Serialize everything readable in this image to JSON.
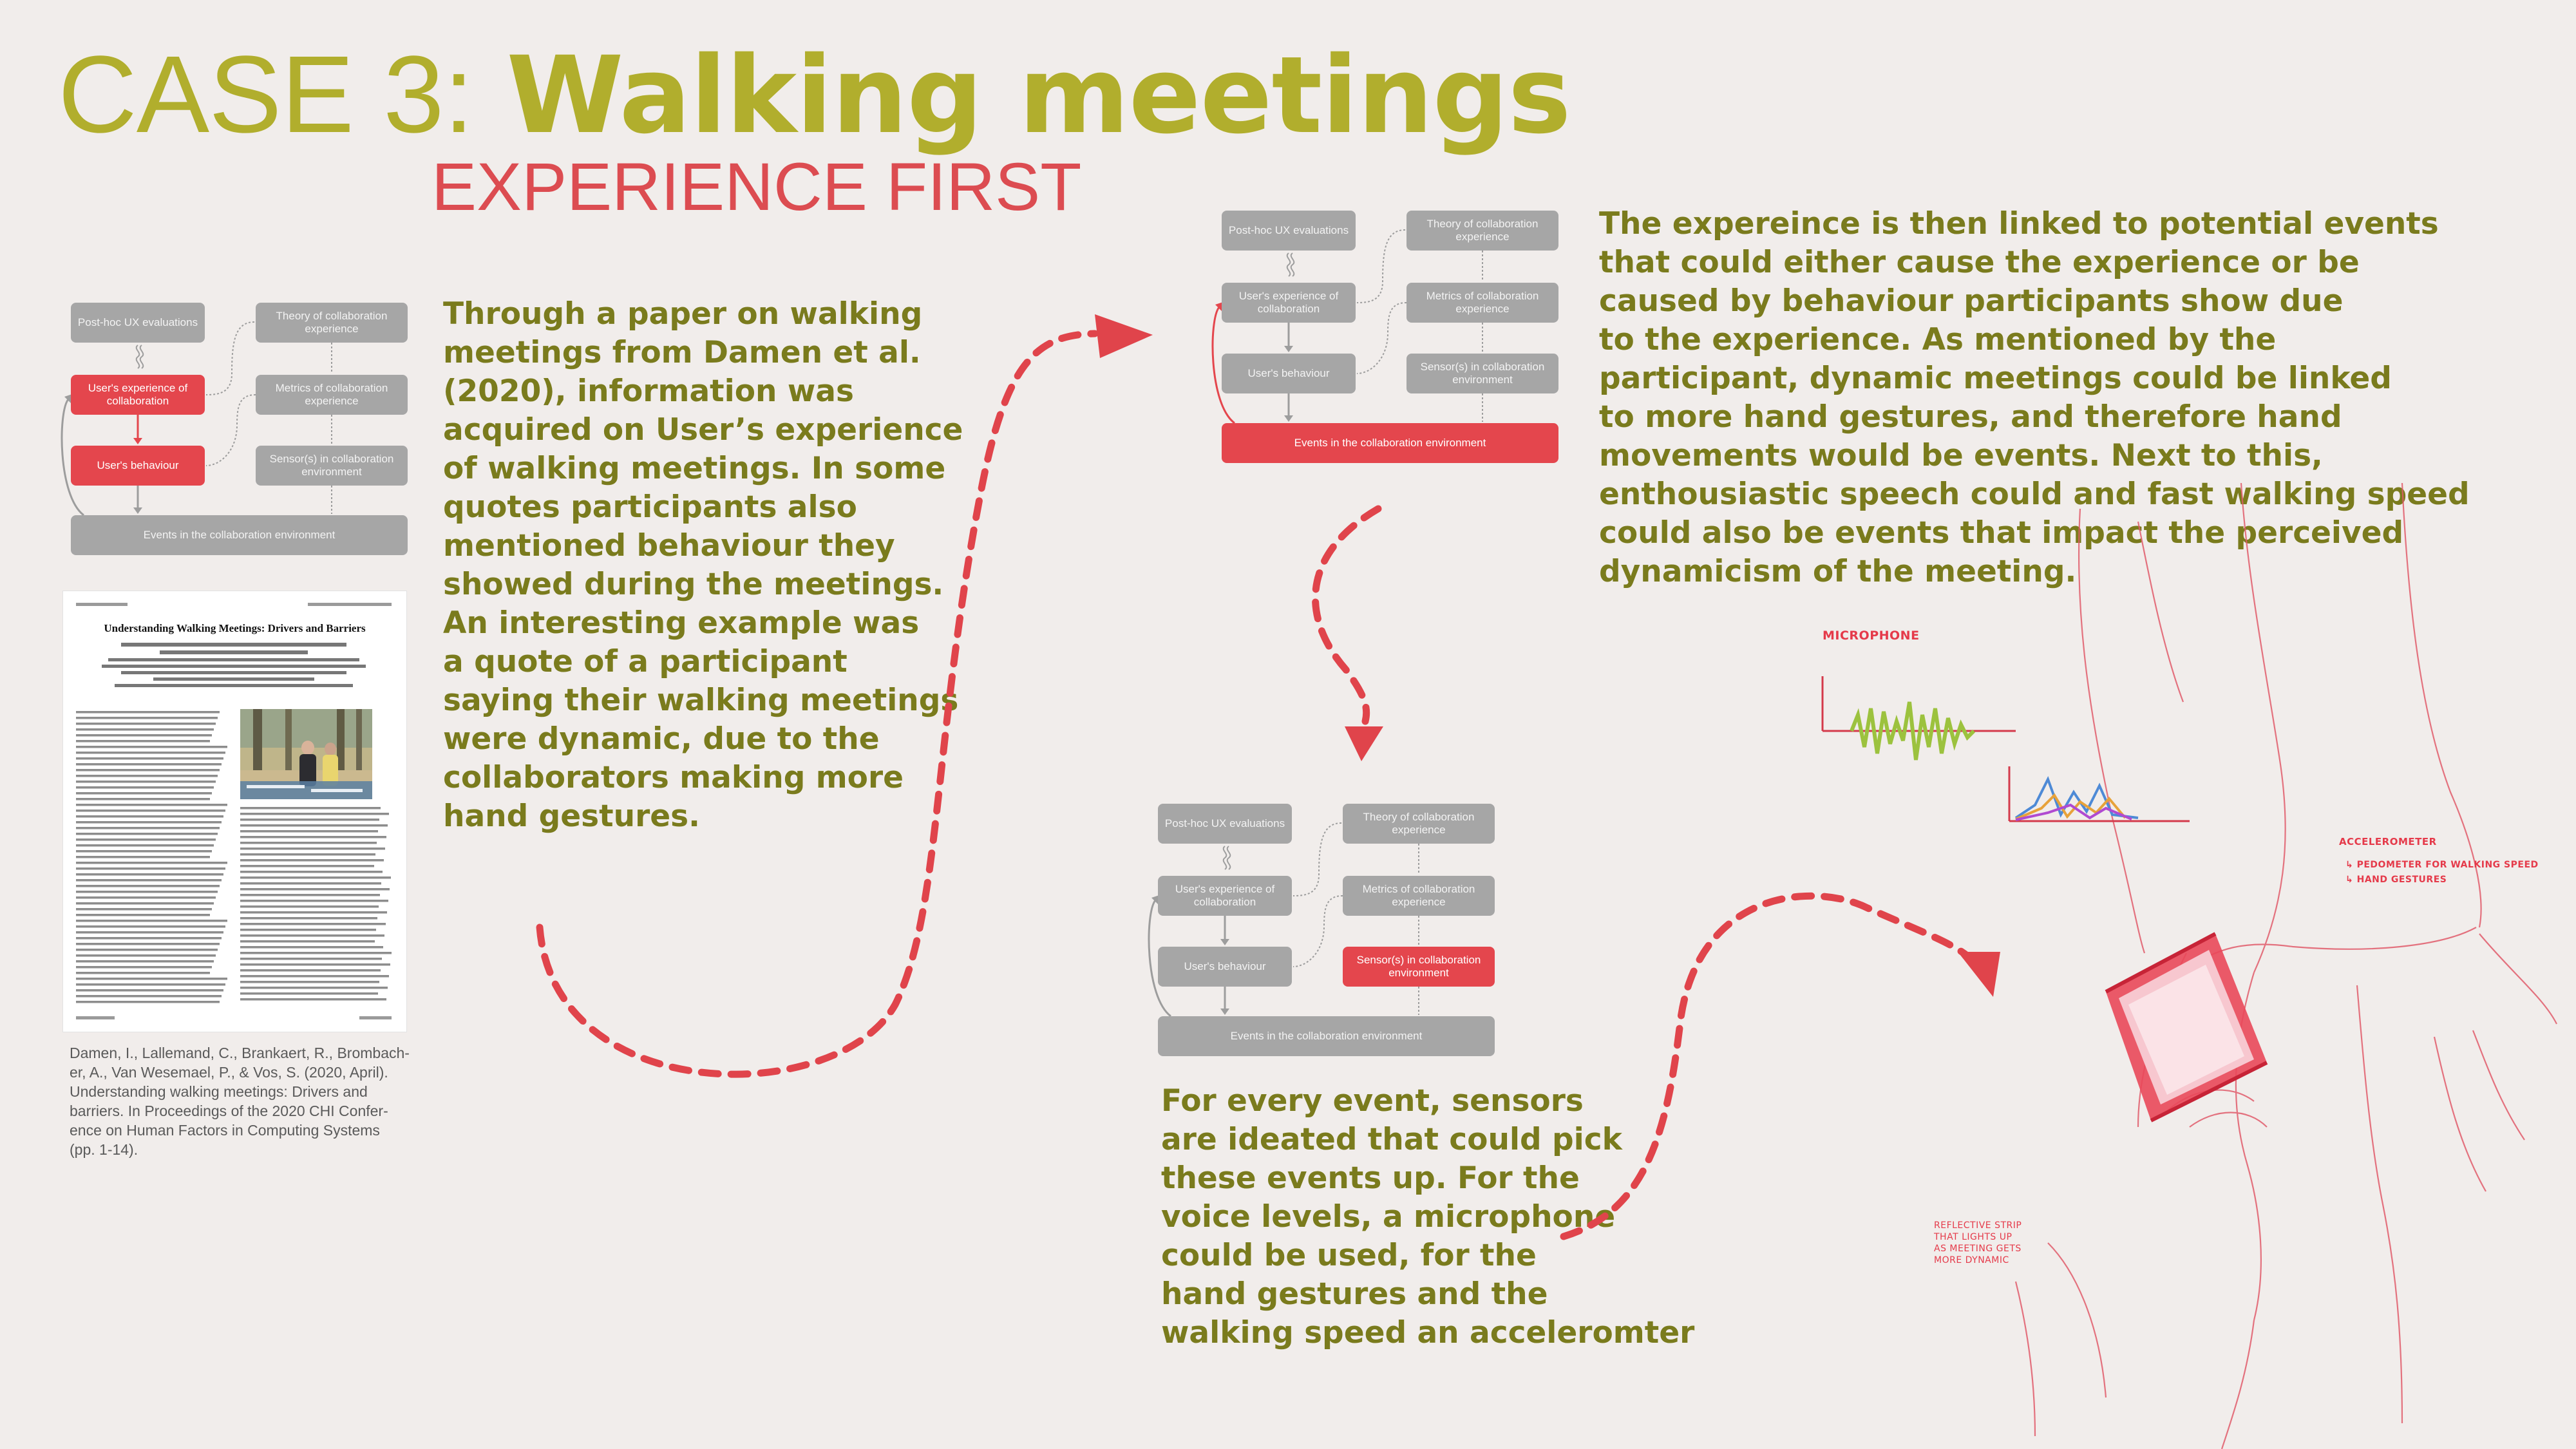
{
  "header": {
    "case_label": "CASE 3:",
    "title": "Walking meetings",
    "subtitle": "EXPERIENCE FIRST"
  },
  "diagram": {
    "post_hoc": "Post-hoc UX evaluations",
    "theory": "Theory of collaboration experience",
    "user_experience": "User's experience of collaboration",
    "metrics": "Metrics of collaboration experience",
    "user_behaviour": "User's behaviour",
    "sensors": "Sensor(s) in collaboration environment",
    "events": "Events in the collaboration environment"
  },
  "paragraph_1": [
    "Through a paper on walking",
    "meetings from Damen et al.",
    "(2020), information was",
    "acquired on User’s experience",
    "of walking meetings. In some",
    "quotes participants also",
    "mentioned behaviour they",
    "showed during the meetings.",
    "An interesting example was",
    "a quote of a participant",
    "saying their walking meetings",
    "were dynamic, due to the",
    "collaborators making more",
    "hand gestures."
  ],
  "paragraph_2": [
    "The expereince is then linked to potential events",
    "that could either cause the experience or be",
    "caused by behaviour participants show due",
    "to the experience. As mentioned by the",
    "participant, dynamic meetings could be linked",
    "to more hand gestures, and therefore hand",
    "movements would be events. Next to this,",
    "enthousiastic speech could and fast walking speed",
    "could also be events that impact the perceived",
    "dynamicism of the meeting."
  ],
  "paragraph_3": [
    "For every event, sensors",
    "are ideated that could pick",
    "these events up. For the",
    "voice levels, a microphone",
    "could be used, for the",
    "hand gestures and the",
    "walking speed an acceleromter"
  ],
  "paper": {
    "title": "Understanding Walking Meetings: Drivers and Barriers"
  },
  "citation": [
    "Damen, I., Lallemand, C., Brankaert, R., Brombach-",
    "er, A., Van Wesemael, P., & Vos, S. (2020, April).",
    "Understanding walking meetings: Drivers and",
    "barriers. In Proceedings of the 2020 CHI Confer-",
    "ence on Human Factors in Computing Systems",
    "(pp. 1-14)."
  ],
  "sketch_notes": {
    "microphone": "MICROPHONE",
    "accelerometer": "ACCELEROMETER",
    "pedometer": "↳ PEDOMETER FOR WALKING SPEED",
    "hand_gestures": "↳ HAND GESTURES",
    "reflective_1": "REFLECTIVE STRIP",
    "reflective_2": "THAT LIGHTS UP",
    "reflective_3": "AS MEETING GETS",
    "reflective_4": "MORE DYNAMIC"
  },
  "colors": {
    "olive": "#b1ae2d",
    "olive_dark": "#7a7b1d",
    "red": "#e4464d",
    "grey_box": "#a6a6a6",
    "background": "#f1edeb"
  }
}
